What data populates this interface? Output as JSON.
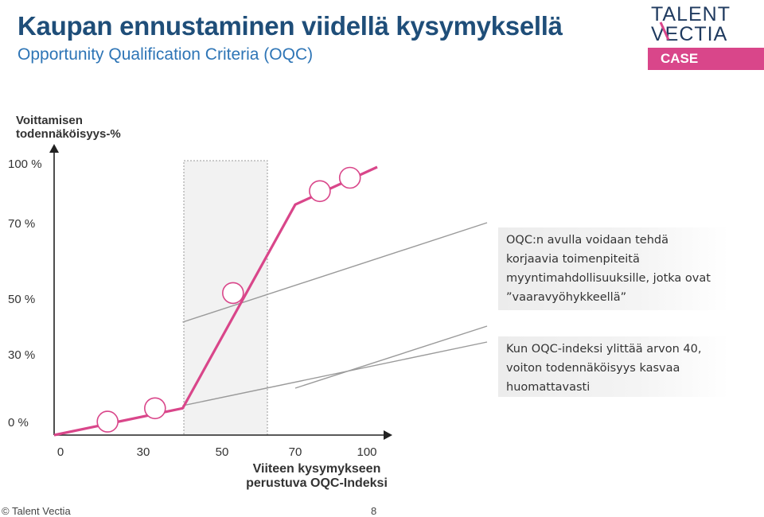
{
  "header": {
    "title": "Kaupan ennustaminen viidellä kysymyksellä",
    "subtitle": "Opportunity Qualification Criteria (OQC)",
    "logo_text_line1": "TALENT",
    "logo_text_line2": "VECTIA",
    "case_badge": "CASE"
  },
  "colors": {
    "title": "#1f4e79",
    "subtitle": "#2e75b6",
    "accent": "#d9468a",
    "logo": "#1f3a5f",
    "connector": "#9a9a9a"
  },
  "chart_data": {
    "type": "line",
    "title": "",
    "ylabel": "Voittamisen\ntodennäköisyys-%",
    "xlabel": "Viiteen kysymykseen\nperustuva OQC-Indeksi",
    "x_ticks": [
      "0",
      "30",
      "50",
      "70",
      "100"
    ],
    "y_ticks": [
      "0 %",
      "30 %",
      "50 %",
      "70 %",
      "100 %"
    ],
    "xlim": [
      0,
      100
    ],
    "ylim": [
      0,
      100
    ],
    "highlight_band": {
      "x_from": 40,
      "x_to": 70
    },
    "series": [
      {
        "line_points": [
          {
            "x": 0,
            "y": 0
          },
          {
            "x": 40,
            "y": 10
          },
          {
            "x": 70,
            "y": 86
          },
          {
            "x": 100,
            "y": 100
          }
        ],
        "markers": [
          {
            "x": 18,
            "y": 5
          },
          {
            "x": 33,
            "y": 10
          },
          {
            "x": 53,
            "y": 53
          },
          {
            "x": 79,
            "y": 91
          },
          {
            "x": 90,
            "y": 96
          }
        ]
      }
    ],
    "annotations": [
      {
        "text": "OQC:n avulla voidaan tehdä korjaavia toimenpiteitä myyntimahdollisuuksille, jotka ovat ”vaaravyöhykkeellä”",
        "points_to": {
          "x": 40,
          "y": 10
        }
      },
      {
        "text": "Kun OQC-indeksi ylittää arvon 40, voiton todennäköisyys kasvaa huomattavasti",
        "points_to": {
          "x": 70,
          "y": 86
        }
      }
    ]
  },
  "footer": {
    "copyright": "© Talent Vectia",
    "page_number": "8"
  }
}
